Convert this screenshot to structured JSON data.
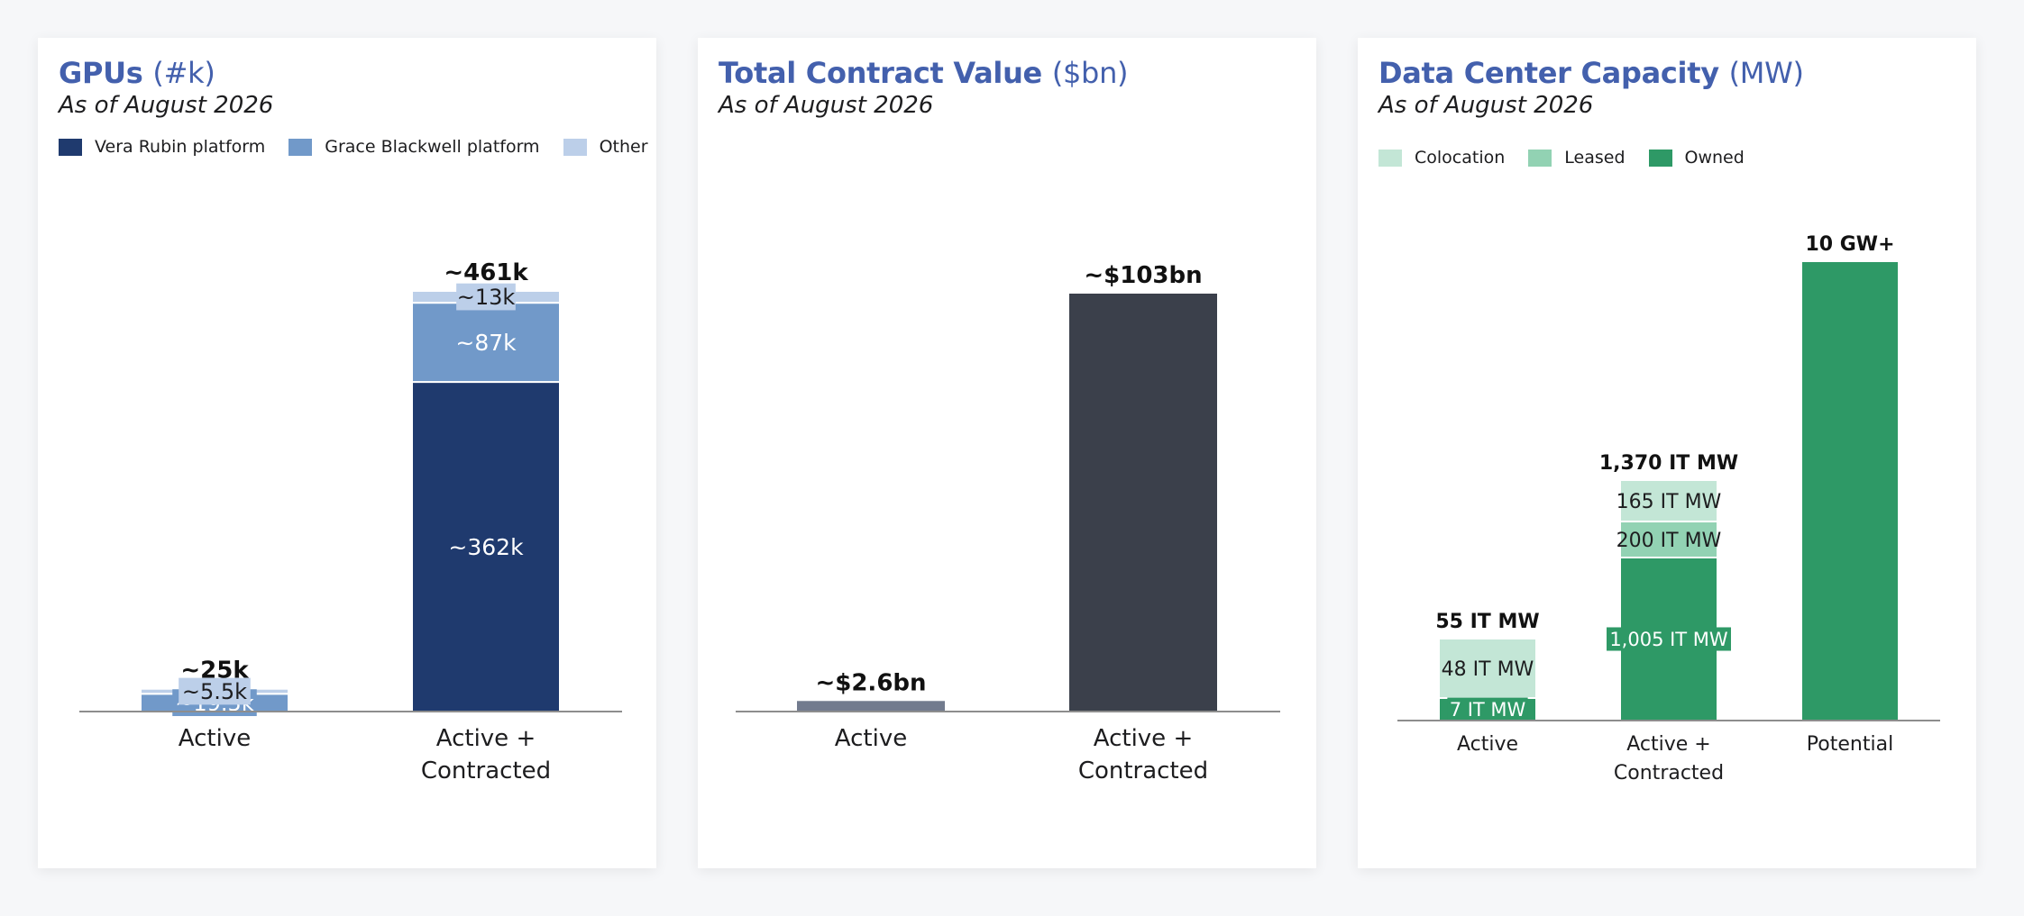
{
  "charts": {
    "gpus": {
      "title": "GPUs",
      "unit": "(#k)",
      "subtitle": "As of August 2026",
      "legend": [
        {
          "label": "Vera Rubin platform",
          "color": "#1f3a6e"
        },
        {
          "label": "Grace Blackwell platform",
          "color": "#7199c9"
        },
        {
          "label": "Other",
          "color": "#bccfe9"
        }
      ]
    },
    "tcv": {
      "title": "Total Contract Value",
      "unit": "($bn)",
      "subtitle": "As of August 2026"
    },
    "dc": {
      "title": "Data Center Capacity",
      "unit": "(MW)",
      "subtitle": "As of August 2026",
      "legend": [
        {
          "label": "Colocation",
          "color": "#c3e6d6"
        },
        {
          "label": "Leased",
          "color": "#92d2b3"
        },
        {
          "label": "Owned",
          "color": "#2e9966"
        }
      ]
    }
  },
  "chart_data": [
    {
      "type": "bar",
      "stacked": true,
      "title": "GPUs (#k)",
      "subtitle": "As of August 2026",
      "categories": [
        "Active",
        "Active + Contracted"
      ],
      "series": [
        {
          "name": "Vera Rubin platform",
          "values": [
            0,
            362
          ],
          "labels": [
            "",
            "~362k"
          ],
          "color": "#1f3a6e"
        },
        {
          "name": "Grace Blackwell platform",
          "values": [
            19.5,
            87
          ],
          "labels": [
            "~19.5k",
            "~87k"
          ],
          "color": "#7199c9"
        },
        {
          "name": "Other",
          "values": [
            5.5,
            13
          ],
          "labels": [
            "~5.5k",
            "~13k"
          ],
          "color": "#bccfe9"
        }
      ],
      "totals": [
        "~25k",
        "~461k"
      ],
      "legend_position": "top-left",
      "grid": false
    },
    {
      "type": "bar",
      "title": "Total Contract Value ($bn)",
      "subtitle": "As of August 2026",
      "categories": [
        "Active",
        "Active + Contracted"
      ],
      "values": [
        2.6,
        103
      ],
      "labels": [
        "~$2.6bn",
        "~$103bn"
      ],
      "colors": [
        "#727b8e",
        "#3b404b"
      ],
      "grid": false
    },
    {
      "type": "bar",
      "stacked": true,
      "title": "Data Center Capacity (MW)",
      "subtitle": "As of August 2026",
      "categories": [
        "Active",
        "Active + Contracted",
        "Potential"
      ],
      "series": [
        {
          "name": "Owned",
          "values": [
            7,
            1005,
            10000
          ],
          "labels": [
            "7 IT MW",
            "1,005 IT MW",
            ""
          ],
          "color": "#2e9966"
        },
        {
          "name": "Leased",
          "values": [
            0,
            200,
            0
          ],
          "labels": [
            "",
            "200 IT MW",
            ""
          ],
          "color": "#92d2b3"
        },
        {
          "name": "Colocation",
          "values": [
            48,
            165,
            0
          ],
          "labels": [
            "48 IT MW",
            "165 IT MW",
            ""
          ],
          "color": "#c3e6d6"
        }
      ],
      "totals": [
        "55 IT MW",
        "1,370 IT MW",
        "10 GW+"
      ],
      "legend_position": "top-left",
      "grid": false,
      "note": "bars not drawn to scale"
    }
  ]
}
